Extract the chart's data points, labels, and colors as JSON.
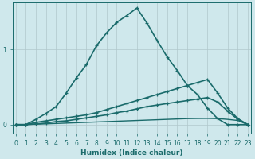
{
  "xlabel": "Humidex (Indice chaleur)",
  "background_color": "#cfe8ec",
  "grid_color": "#b0c8cc",
  "line_color": "#1a6b6b",
  "xlim": [
    -0.3,
    23.3
  ],
  "ylim": [
    -0.12,
    1.62
  ],
  "xticks": [
    0,
    1,
    2,
    3,
    4,
    5,
    6,
    7,
    8,
    9,
    10,
    11,
    12,
    13,
    14,
    15,
    16,
    17,
    18,
    19,
    20,
    21,
    22,
    23
  ],
  "yticks": [
    0,
    1
  ],
  "series": [
    {
      "x": [
        0,
        1,
        2,
        3,
        4,
        5,
        6,
        7,
        8,
        9,
        10,
        11,
        12,
        13,
        14,
        15,
        16,
        17,
        18,
        19,
        20,
        21,
        22,
        23
      ],
      "y": [
        0.0,
        0.0,
        0.07,
        0.15,
        0.24,
        0.42,
        0.62,
        0.8,
        1.05,
        1.22,
        1.36,
        1.45,
        1.55,
        1.35,
        1.12,
        0.9,
        0.72,
        0.52,
        0.4,
        0.22,
        0.08,
        0.0,
        0.0,
        0.0
      ],
      "marker": "+",
      "lw": 1.2
    },
    {
      "x": [
        0,
        1,
        2,
        3,
        4,
        5,
        6,
        7,
        8,
        9,
        10,
        11,
        12,
        13,
        14,
        15,
        16,
        17,
        18,
        19,
        20,
        21,
        22,
        23
      ],
      "y": [
        0.0,
        0.0,
        0.03,
        0.05,
        0.07,
        0.09,
        0.11,
        0.13,
        0.16,
        0.2,
        0.24,
        0.28,
        0.32,
        0.36,
        0.4,
        0.44,
        0.48,
        0.52,
        0.56,
        0.6,
        0.42,
        0.22,
        0.08,
        0.0
      ],
      "marker": "+",
      "lw": 1.2
    },
    {
      "x": [
        0,
        1,
        2,
        3,
        4,
        5,
        6,
        7,
        8,
        9,
        10,
        11,
        12,
        13,
        14,
        15,
        16,
        17,
        18,
        19,
        20,
        21,
        22,
        23
      ],
      "y": [
        0.0,
        0.0,
        0.01,
        0.02,
        0.04,
        0.05,
        0.07,
        0.09,
        0.11,
        0.13,
        0.16,
        0.18,
        0.21,
        0.24,
        0.26,
        0.28,
        0.3,
        0.32,
        0.34,
        0.36,
        0.3,
        0.18,
        0.07,
        0.0
      ],
      "marker": "+",
      "lw": 1.2
    },
    {
      "x": [
        0,
        1,
        2,
        3,
        4,
        5,
        6,
        7,
        8,
        9,
        10,
        11,
        12,
        13,
        14,
        15,
        16,
        17,
        18,
        19,
        20,
        21,
        22,
        23
      ],
      "y": [
        0.0,
        0.0,
        0.005,
        0.01,
        0.015,
        0.02,
        0.025,
        0.03,
        0.035,
        0.04,
        0.045,
        0.05,
        0.055,
        0.06,
        0.065,
        0.07,
        0.075,
        0.08,
        0.082,
        0.083,
        0.08,
        0.07,
        0.055,
        0.0
      ],
      "marker": null,
      "lw": 1.0
    }
  ]
}
